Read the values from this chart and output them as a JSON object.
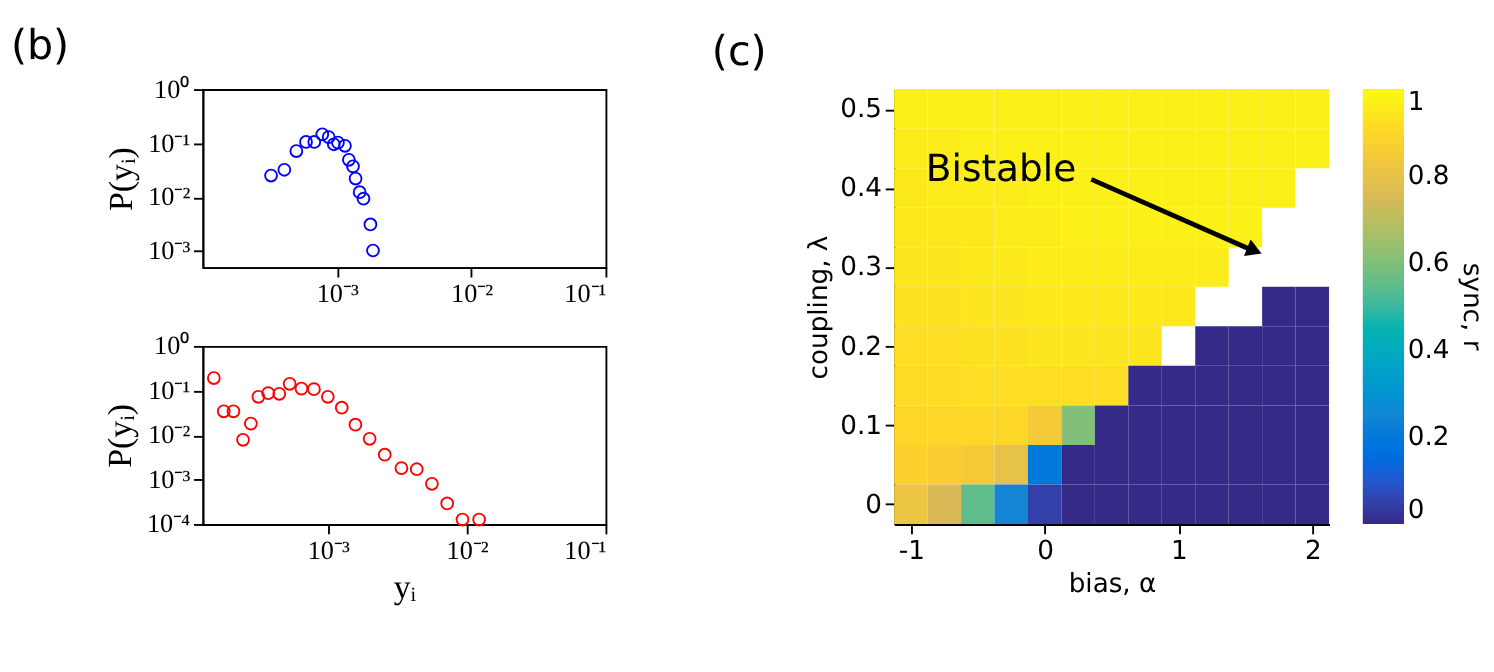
{
  "chart_data": [
    {
      "type": "scatter",
      "title": "(b)",
      "ylabel": "P(yᵢ)",
      "log": "xy",
      "marker": "circle",
      "grid": false,
      "x": [
        0.000324,
        0.000407,
        0.0005,
        0.00059,
        0.00068,
        0.00078,
        0.00087,
        0.00095,
        0.00102,
        0.00115,
        0.00123,
        0.00132,
        0.00138,
        0.00148,
        0.00158,
        0.00178,
        0.00186
      ],
      "series": [
        {
          "color": "#0000ff",
          "values": [
            0.025,
            0.032,
            0.071,
            0.105,
            0.105,
            0.145,
            0.129,
            0.095,
            0.102,
            0.089,
            0.049,
            0.037,
            0.022,
            0.0123,
            0.0093,
            0.0031,
            0.00102
          ]
        }
      ],
      "xlim": [
        0.0001,
        0.1
      ],
      "xticks": [
        {
          "value": 0.001,
          "label": "10⁻³"
        },
        {
          "value": 0.01,
          "label": "10⁻²"
        },
        {
          "value": 0.1,
          "label": "10⁻¹"
        }
      ],
      "ylim": [
        0.0005,
        1
      ],
      "yticks": [
        {
          "value": 1,
          "label": "10⁰"
        },
        {
          "value": 0.1,
          "label": "10⁻¹"
        },
        {
          "value": 0.01,
          "label": "10⁻²"
        },
        {
          "value": 0.001,
          "label": "10⁻³"
        }
      ]
    },
    {
      "type": "scatter",
      "xlabel": "yᵢ",
      "ylabel": "P(yᵢ)",
      "log": "xy",
      "marker": "circle",
      "grid": false,
      "x": [
        0.000151,
        0.000178,
        0.000209,
        0.000245,
        0.000279,
        0.000316,
        0.000372,
        0.000447,
        0.000531,
        0.000646,
        0.000794,
        0.001,
        0.00126,
        0.00158,
        0.002,
        0.00257,
        0.00339,
        0.00437,
        0.00562,
        0.00724,
        0.00933,
        0.0123
      ],
      "series": [
        {
          "color": "#ff0000",
          "values": [
            0.19,
            0.034,
            0.034,
            0.0078,
            0.018,
            0.072,
            0.087,
            0.084,
            0.141,
            0.11,
            0.107,
            0.072,
            0.041,
            0.017,
            0.0082,
            0.0036,
            0.0018,
            0.0017,
            0.0008,
            0.00029,
            0.000126,
            0.000126
          ]
        }
      ],
      "xlim": [
        0.000125,
        0.1
      ],
      "xticks": [
        {
          "value": 0.001,
          "label": "10⁻³"
        },
        {
          "value": 0.01,
          "label": "10⁻²"
        },
        {
          "value": 0.1,
          "label": "10⁻¹"
        }
      ],
      "ylim": [
        0.0001,
        1
      ],
      "yticks": [
        {
          "value": 1,
          "label": "10⁰"
        },
        {
          "value": 0.1,
          "label": "10⁻¹"
        },
        {
          "value": 0.01,
          "label": "10⁻²"
        },
        {
          "value": 0.001,
          "label": "10⁻³"
        },
        {
          "value": 0.0001,
          "label": "10⁻⁴"
        }
      ]
    },
    {
      "type": "heatmap",
      "title": "(c)",
      "xlabel": "bias, α",
      "ylabel": "coupling, λ",
      "clabel": "sync, r",
      "categories": [
        "-1",
        null,
        null,
        null,
        "0",
        null,
        null,
        null,
        "1",
        null,
        null,
        null,
        "2"
      ],
      "y_categories": [
        "0.5",
        null,
        "0.4",
        null,
        "0.3",
        null,
        "0.2",
        null,
        "0.1",
        null,
        "0"
      ],
      "cells": [
        [
          0.97,
          0.97,
          0.97,
          0.97,
          0.97,
          0.97,
          0.97,
          0.97,
          0.97,
          0.97,
          0.97,
          0.97,
          0.97
        ],
        [
          0.96,
          0.96,
          0.97,
          0.97,
          0.97,
          0.97,
          0.97,
          0.97,
          0.97,
          0.97,
          0.97,
          0.97,
          0.97
        ],
        [
          0.95,
          0.96,
          0.96,
          0.96,
          0.97,
          0.97,
          0.97,
          0.97,
          0.97,
          0.97,
          0.97,
          0.97,
          null
        ],
        [
          0.95,
          0.95,
          0.95,
          0.96,
          0.96,
          0.97,
          0.97,
          0.97,
          0.97,
          0.97,
          0.97,
          null,
          null
        ],
        [
          0.94,
          0.94,
          0.95,
          0.95,
          0.96,
          0.96,
          0.96,
          0.96,
          0.96,
          0.96,
          null,
          null,
          null
        ],
        [
          0.93,
          0.93,
          0.94,
          0.94,
          0.95,
          0.95,
          0.95,
          0.95,
          0.95,
          null,
          null,
          0,
          0
        ],
        [
          0.92,
          0.92,
          0.93,
          0.93,
          0.94,
          0.94,
          0.94,
          0.94,
          null,
          0,
          0,
          0,
          0
        ],
        [
          0.91,
          0.91,
          0.92,
          0.92,
          0.92,
          0.92,
          0.92,
          0,
          0,
          0,
          0,
          0,
          0
        ],
        [
          0.9,
          0.9,
          0.9,
          0.9,
          0.85,
          0.6,
          0,
          0,
          0,
          0,
          0,
          0,
          0
        ],
        [
          0.88,
          0.87,
          0.85,
          0.8,
          0.2,
          0,
          0,
          0,
          0,
          0,
          0,
          0,
          0
        ],
        [
          0.82,
          0.75,
          0.55,
          0.25,
          0.05,
          0,
          0,
          0,
          0,
          0,
          0,
          0,
          0
        ]
      ],
      "clim": [
        0,
        1
      ],
      "cticks": [
        0,
        0.2,
        0.4,
        0.6,
        0.8,
        1
      ],
      "annotations": [
        "Bistable"
      ]
    }
  ]
}
